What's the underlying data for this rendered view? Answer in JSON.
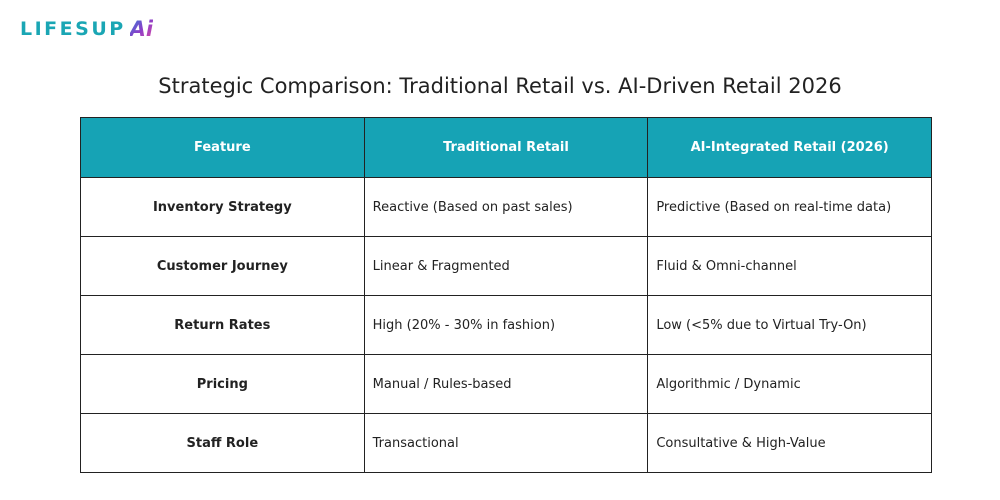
{
  "brand": {
    "name": "LIFESUP",
    "suffix": "Ai",
    "colors": {
      "text": "#1aa6b4",
      "gradient": [
        "#2f7fd8",
        "#8a3fc9",
        "#e14aa2"
      ]
    }
  },
  "title": "Strategic Comparison: Traditional Retail vs. AI-Driven Retail 2026",
  "table": {
    "header_color": "#16a3b5",
    "columns": [
      "Feature",
      "Traditional Retail",
      "AI-Integrated Retail (2026)"
    ],
    "rows": [
      {
        "feature": "Inventory Strategy",
        "traditional": "Reactive (Based on past sales)",
        "ai": "Predictive (Based on real-time data)"
      },
      {
        "feature": "Customer Journey",
        "traditional": "Linear & Fragmented",
        "ai": "Fluid & Omni-channel"
      },
      {
        "feature": "Return Rates",
        "traditional": "High (20% - 30% in fashion)",
        "ai": "Low (<5% due to Virtual Try-On)"
      },
      {
        "feature": "Pricing",
        "traditional": "Manual / Rules-based",
        "ai": "Algorithmic / Dynamic"
      },
      {
        "feature": "Staff Role",
        "traditional": "Transactional",
        "ai": "Consultative & High-Value"
      }
    ]
  }
}
